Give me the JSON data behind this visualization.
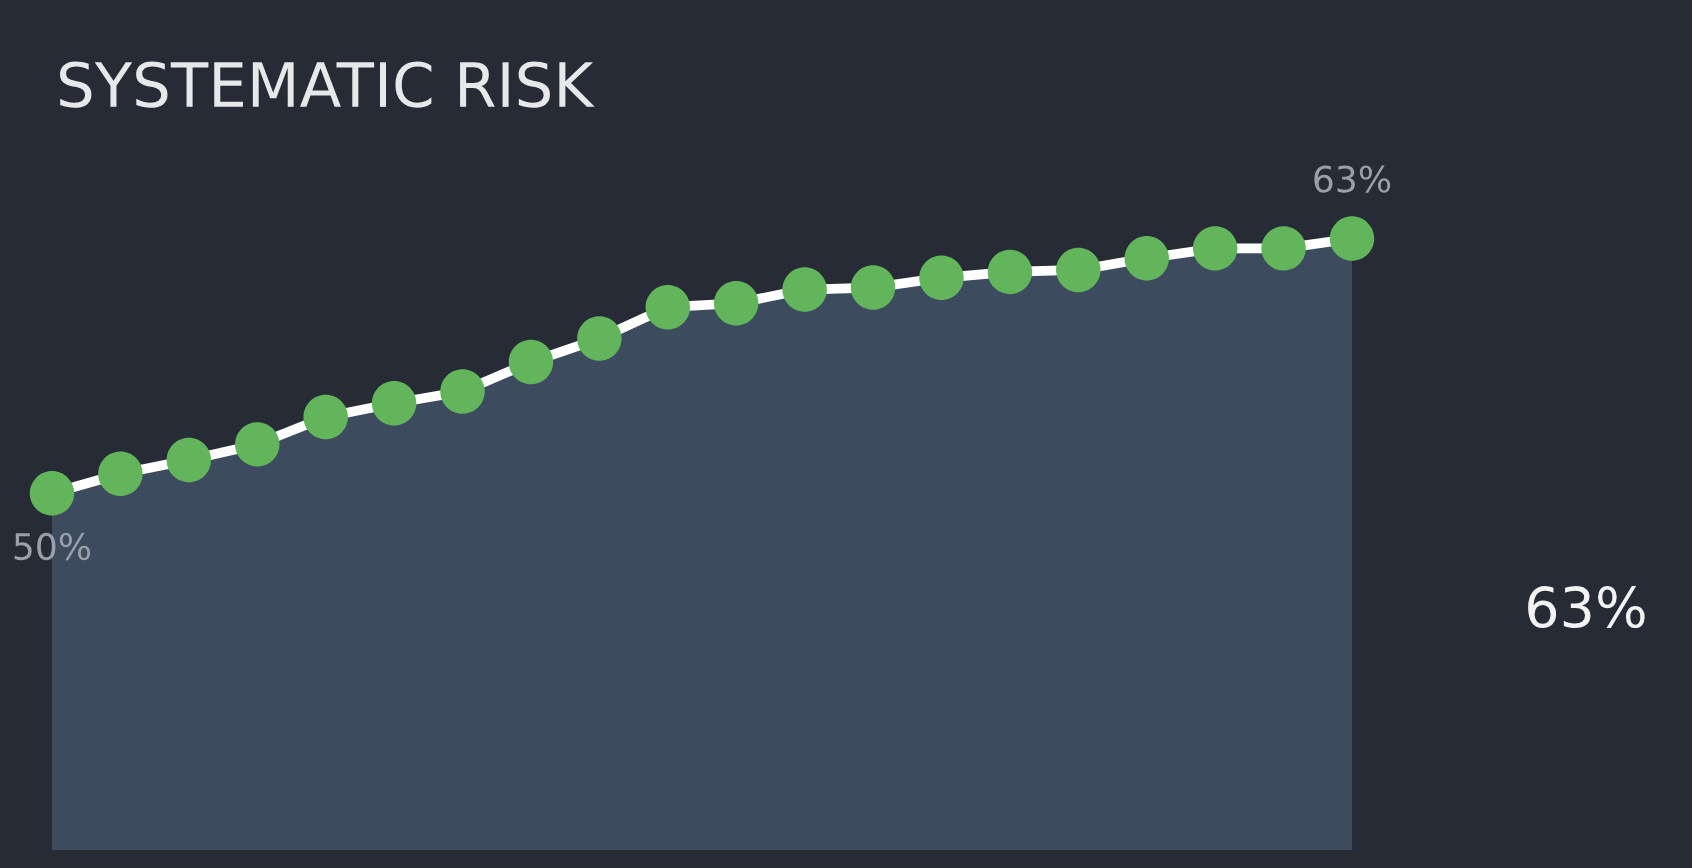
{
  "chart_data": {
    "type": "line",
    "title": "SYSTEMATIC RISK",
    "categories": [
      null,
      null,
      null,
      null,
      null,
      null,
      null,
      null,
      null,
      null,
      null,
      null,
      null,
      null,
      null,
      null,
      null,
      null,
      null,
      null
    ],
    "marker": "circle",
    "annotations": [
      "63%"
    ],
    "series": [
      {
        "color": "#ffffff",
        "values": [
          50,
          51.0,
          51.7,
          52.5,
          53.9,
          54.6,
          55.2,
          56.7,
          57.9,
          59.5,
          59.7,
          60.4,
          60.5,
          61.0,
          61.3,
          61.4,
          62.0,
          62.5,
          62.5,
          63
        ],
        "value_labels": [
          "50%",
          null,
          null,
          null,
          null,
          null,
          null,
          null,
          null,
          null,
          null,
          null,
          null,
          null,
          null,
          null,
          null,
          null,
          null,
          "63%"
        ]
      }
    ]
  }
}
